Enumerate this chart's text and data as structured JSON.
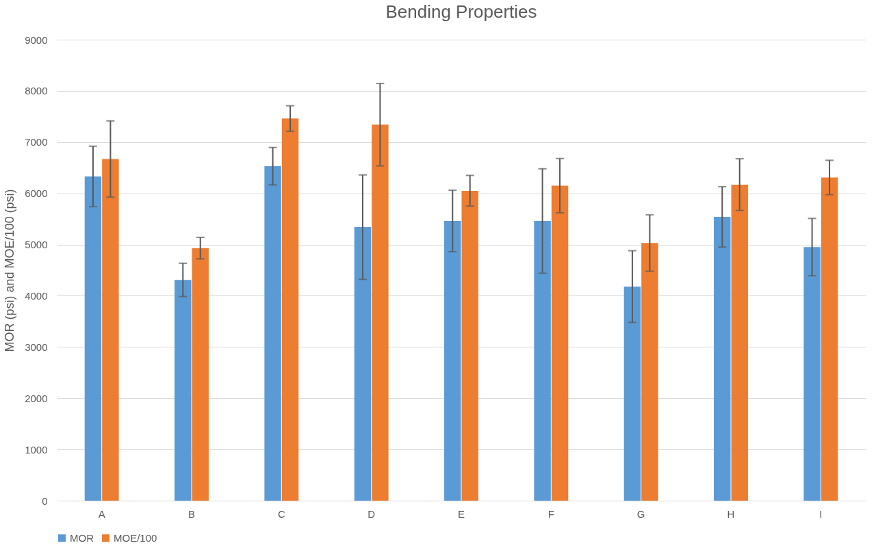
{
  "chart_data": {
    "type": "bar",
    "title": "Bending Properties",
    "ylabel": "MOR (psi) and MOE/100 (psi)",
    "categories": [
      "A",
      "B",
      "C",
      "D",
      "E",
      "F",
      "G",
      "H",
      "I"
    ],
    "series": [
      {
        "name": "MOR",
        "color": "#5b9bd5",
        "values": [
          6330,
          4310,
          6530,
          5340,
          5460,
          5460,
          4180,
          5540,
          4950
        ],
        "errors": [
          590,
          325,
          365,
          1020,
          600,
          1020,
          700,
          590,
          560
        ]
      },
      {
        "name": "MOE/100",
        "color": "#ed7d31",
        "values": [
          6670,
          4930,
          7460,
          7340,
          6050,
          6150,
          5030,
          6170,
          6310
        ],
        "errors": [
          745,
          210,
          250,
          805,
          300,
          530,
          550,
          505,
          335
        ]
      }
    ],
    "ylim": [
      0,
      9000
    ],
    "yticks": [
      0,
      1000,
      2000,
      3000,
      4000,
      5000,
      6000,
      7000,
      8000,
      9000
    ],
    "grid": "y",
    "legend": "bottom"
  }
}
